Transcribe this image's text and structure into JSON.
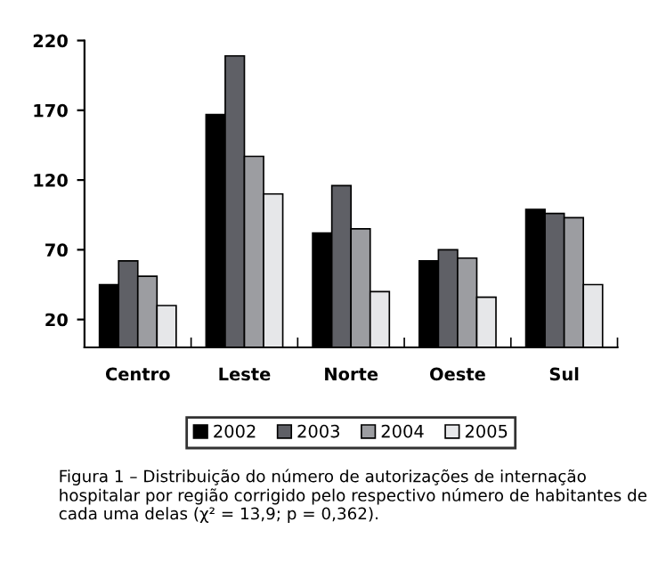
{
  "chart_data": {
    "type": "bar",
    "categories": [
      "Centro",
      "Leste",
      "Norte",
      "Oeste",
      "Sul"
    ],
    "series": [
      {
        "name": "2002",
        "color": "#000000",
        "values": [
          45,
          167,
          82,
          62,
          99
        ]
      },
      {
        "name": "2003",
        "color": "#5f6066",
        "values": [
          62,
          209,
          116,
          70,
          96
        ]
      },
      {
        "name": "2004",
        "color": "#9c9da1",
        "values": [
          51,
          137,
          85,
          64,
          93
        ]
      },
      {
        "name": "2005",
        "color": "#e6e7e9",
        "values": [
          30,
          110,
          40,
          36,
          45
        ]
      }
    ],
    "ylim": [
      0,
      220
    ],
    "yticks": [
      20,
      70,
      120,
      170,
      220
    ],
    "grid": false,
    "legend": "bottom",
    "annotations": [
      "Figura 1 – Distribuição do número de autorizações de internação hospitalar por região corrigido pelo respectivo número de habitantes de cada uma delas (χ² = 13,9; p = 0,362)."
    ]
  }
}
